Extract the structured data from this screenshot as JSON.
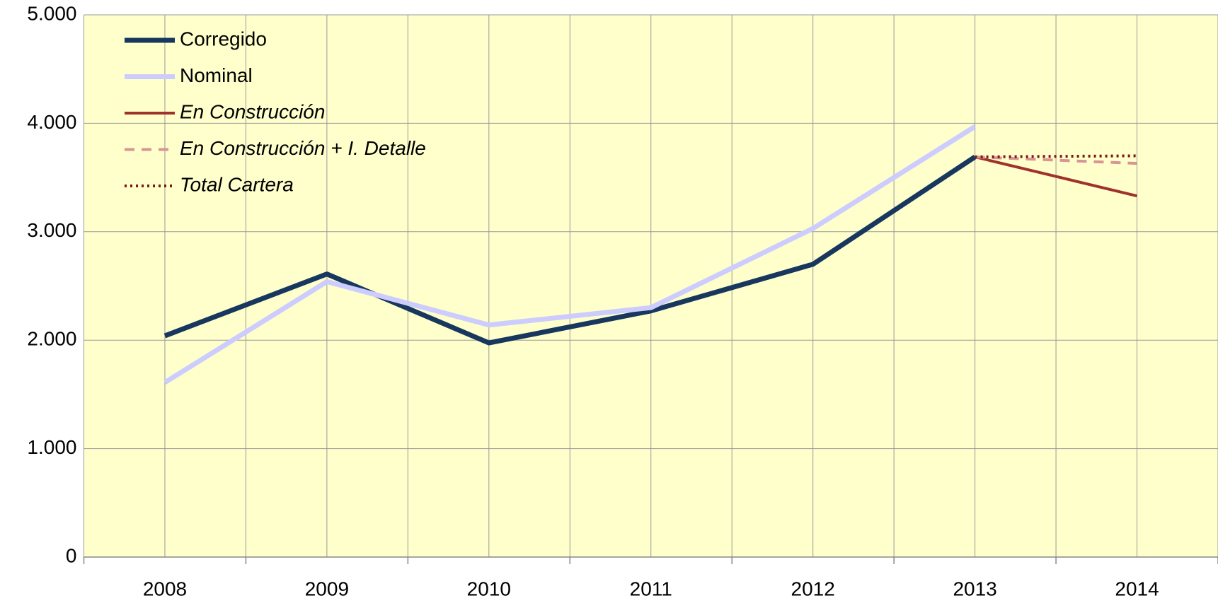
{
  "chart_data": {
    "type": "line",
    "categories": [
      "2008",
      "2009",
      "2010",
      "2011",
      "2012",
      "2013",
      "2014"
    ],
    "series": [
      {
        "name": "Corregido",
        "color": "#17375e",
        "style": "solid",
        "values": [
          2040,
          2610,
          1975,
          2270,
          2700,
          3690,
          null
        ]
      },
      {
        "name": "Nominal",
        "color": "#ccccff",
        "style": "solid",
        "values": [
          1610,
          2540,
          2140,
          2300,
          3030,
          3970,
          null
        ]
      },
      {
        "name": "En Construcción",
        "color": "#a0322d",
        "style": "solid",
        "values": [
          null,
          null,
          null,
          null,
          null,
          3690,
          3330
        ]
      },
      {
        "name": "En Construcción + I. Detalle",
        "color": "#d99594",
        "style": "dashed",
        "values": [
          null,
          null,
          null,
          null,
          null,
          3690,
          3630
        ]
      },
      {
        "name": "Total Cartera",
        "color": "#7b1818",
        "style": "dotted",
        "values": [
          null,
          null,
          null,
          null,
          null,
          3690,
          3700
        ]
      }
    ],
    "ylim": [
      0,
      5000
    ],
    "yticks": [
      0,
      {
        "value": 1000,
        "label": "1.000"
      },
      {
        "value": 2000,
        "label": "2.000"
      },
      {
        "value": 3000,
        "label": "3.000"
      },
      {
        "value": 4000,
        "label": "4.000"
      },
      {
        "value": 5000,
        "label": "5.000"
      }
    ],
    "grid": true,
    "legend": "upper left",
    "background": "#ffffcc"
  }
}
